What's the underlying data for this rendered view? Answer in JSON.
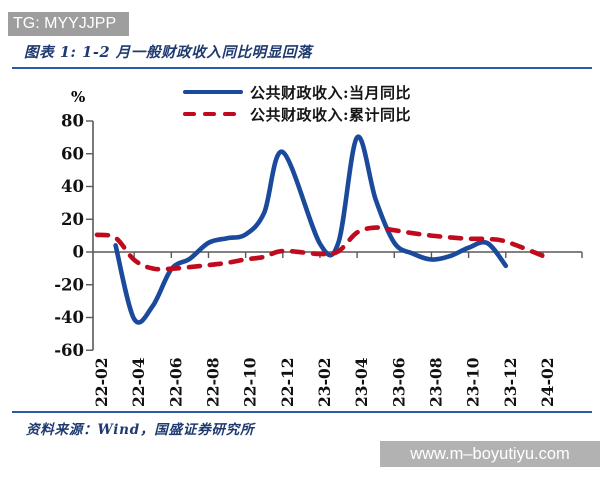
{
  "header": {
    "tag": "TG: MYYJJPP"
  },
  "figure": {
    "title": "图表 1: 1-2 月一般财政收入同比明显回落",
    "source": "资料来源：Wind，国盛证券研究所",
    "watermark": "www.m–boyutiyu.com"
  },
  "colors": {
    "monthly_line": "#1b4a9d",
    "cumulative_line": "#c00a1e",
    "axis": "#595959",
    "divider": "#2b5ca8",
    "title_text": "#1e3a70",
    "tag_box": "#9e9e9e",
    "watermark_box": "#b2b2b2"
  },
  "chart_data": {
    "type": "line",
    "ylabel": "%",
    "ylim": [
      -60,
      80
    ],
    "yticks": [
      80,
      60,
      40,
      20,
      0,
      -20,
      -40,
      -60
    ],
    "xtick_labels": [
      "22-02",
      "22-04",
      "22-06",
      "22-08",
      "22-10",
      "22-12",
      "23-02",
      "23-04",
      "23-06",
      "23-08",
      "23-10",
      "23-12",
      "24-02"
    ],
    "grid": false,
    "legend_position": "top",
    "series": [
      {
        "name": "公共财政收入:当月同比",
        "style": "solid",
        "color": "#1b4a9d",
        "points": [
          [
            "22-03",
            4
          ],
          [
            "22-04",
            -41
          ],
          [
            "22-05",
            -33
          ],
          [
            "22-06",
            -10.5
          ],
          [
            "22-07",
            -4.1
          ],
          [
            "22-08",
            5.6
          ],
          [
            "22-09",
            8.4
          ],
          [
            "22-10",
            10.7
          ],
          [
            "22-11",
            24
          ],
          [
            "22-12",
            61
          ],
          [
            "23-02",
            5
          ],
          [
            "23-03",
            6
          ],
          [
            "23-04",
            70
          ],
          [
            "23-05",
            32
          ],
          [
            "23-06",
            5.6
          ],
          [
            "23-07",
            -1
          ],
          [
            "23-08",
            -4.6
          ],
          [
            "23-09",
            -2.5
          ],
          [
            "23-10",
            2.6
          ],
          [
            "23-11",
            5.5
          ],
          [
            "23-12",
            -8.4
          ]
        ]
      },
      {
        "name": "公共财政收入:累计同比",
        "style": "dashed",
        "color": "#c00a1e",
        "points": [
          [
            "22-02",
            10.5
          ],
          [
            "22-03",
            8.6
          ],
          [
            "22-04",
            -4.8
          ],
          [
            "22-05",
            -10.1
          ],
          [
            "22-06",
            -10.2
          ],
          [
            "22-07",
            -9.2
          ],
          [
            "22-08",
            -8
          ],
          [
            "22-09",
            -6.6
          ],
          [
            "22-10",
            -4.5
          ],
          [
            "22-11",
            -3
          ],
          [
            "22-12",
            0.6
          ],
          [
            "23-02",
            -1.2
          ],
          [
            "23-03",
            0.5
          ],
          [
            "23-04",
            11.9
          ],
          [
            "23-05",
            14.9
          ],
          [
            "23-06",
            13.3
          ],
          [
            "23-07",
            11.5
          ],
          [
            "23-08",
            10
          ],
          [
            "23-09",
            8.9
          ],
          [
            "23-10",
            8.1
          ],
          [
            "23-11",
            7.9
          ],
          [
            "23-12",
            6.4
          ],
          [
            "24-02",
            -2.3
          ]
        ]
      }
    ]
  }
}
